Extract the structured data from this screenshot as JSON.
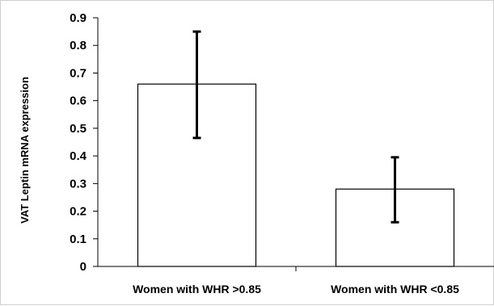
{
  "chart_data": {
    "type": "bar",
    "categories": [
      "Women with WHR >0.85",
      "Women with WHR <0.85"
    ],
    "values": [
      0.66,
      0.28
    ],
    "error_bars": [
      {
        "low": 0.465,
        "high": 0.85
      },
      {
        "low": 0.16,
        "high": 0.395
      }
    ],
    "title": "",
    "xlabel": "",
    "ylabel": "VAT Leptin mRNA expression",
    "ylim": [
      0,
      0.9
    ],
    "yticks": [
      "0",
      "0.1",
      "0.2",
      "0.3",
      "0.4",
      "0.5",
      "0.6",
      "0.7",
      "0.8",
      "0.9"
    ],
    "grid": false,
    "legend": "none",
    "colors": {
      "bar_fill": "#ffffff",
      "bar_stroke": "#000000",
      "axis": "#000000"
    }
  }
}
